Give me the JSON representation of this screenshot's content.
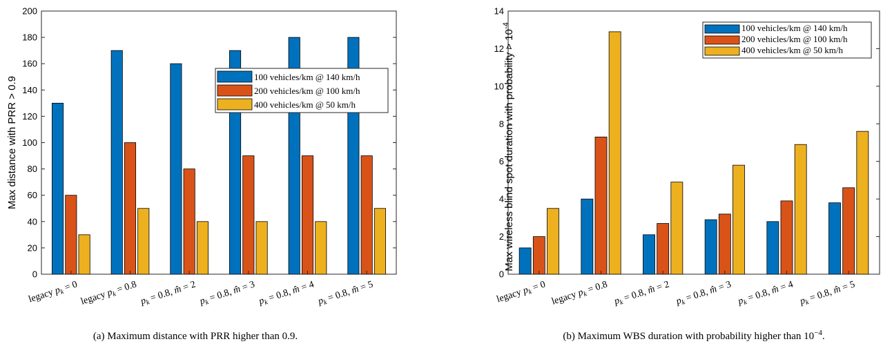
{
  "chart_data": [
    {
      "type": "bar",
      "title": "",
      "ylabel": "Max distance with PRR > 0.9",
      "xlabel": "",
      "ylim": [
        0,
        200
      ],
      "yticks": [
        "0",
        "20",
        "40",
        "60",
        "80",
        "100",
        "120",
        "140",
        "160",
        "180",
        "200"
      ],
      "categories": [
        "legacy p_k = 0",
        "legacy p_k = 0.8",
        "p_k = 0.8, m̂ = 2",
        "p_k = 0.8, m̂ = 3",
        "p_k = 0.8, m̂ = 4",
        "p_k = 0.8, m̂ = 5"
      ],
      "series": [
        {
          "name": "100 vehicles/km @ 140 km/h",
          "color": "#0072BD",
          "values": [
            130,
            170,
            160,
            170,
            180,
            180
          ]
        },
        {
          "name": "200 vehicles/km @ 100 km/h",
          "color": "#D95319",
          "values": [
            60,
            100,
            80,
            90,
            90,
            90
          ]
        },
        {
          "name": "400 vehicles/km @ 50 km/h",
          "color": "#EDB120",
          "values": [
            30,
            50,
            40,
            40,
            40,
            50
          ]
        }
      ],
      "legend_position": "right",
      "grid": false,
      "caption": "(a) Maximum distance with PRR higher than 0.9."
    },
    {
      "type": "bar",
      "title": "",
      "ylabel": "Max wireless blind spot duration with probability > 10",
      "ylabel_exponent": "-4",
      "xlabel": "",
      "ylim": [
        0,
        14
      ],
      "yticks": [
        "0",
        "2",
        "4",
        "6",
        "8",
        "10",
        "12",
        "14"
      ],
      "categories": [
        "legacy p_k = 0",
        "legacy p_k = 0.8",
        "p_k = 0.8, m̂ = 2",
        "p_k = 0.8, m̂ = 3",
        "p_k = 0.8, m̂ = 4",
        "p_k = 0.8, m̂ = 5"
      ],
      "series": [
        {
          "name": "100 vehicles/km @ 140 km/h",
          "color": "#0072BD",
          "values": [
            1.4,
            4.0,
            2.1,
            2.9,
            2.8,
            3.8
          ]
        },
        {
          "name": "200 vehicles/km @ 100 km/h",
          "color": "#D95319",
          "values": [
            2.0,
            7.3,
            2.7,
            3.2,
            3.9,
            4.6
          ]
        },
        {
          "name": "400 vehicles/km @ 50 km/h",
          "color": "#EDB120",
          "values": [
            3.5,
            12.9,
            4.9,
            5.8,
            6.9,
            7.6
          ]
        }
      ],
      "legend_position": "top-right",
      "grid": false,
      "caption": "(b) Maximum WBS duration with probability higher than 10",
      "caption_exponent": "−4",
      "caption_end": "."
    }
  ]
}
